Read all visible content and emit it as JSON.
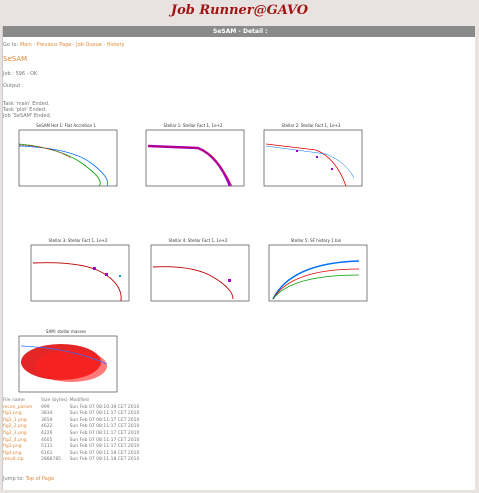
{
  "header": {
    "title": "Job Runner@GAVO",
    "bar_title": "SeSAM - Detail :"
  },
  "nav": {
    "prefix": "Go to:",
    "links": [
      "Main",
      "Previous Page",
      "Job Queue",
      "History"
    ],
    "sep": "·"
  },
  "section_title": "SeSAM",
  "job_line": "Job : 596 - OK",
  "output_label": "Output :",
  "tasks": [
    "Task 'main' Ended.",
    "Task 'plot' Ended.",
    "Job 'SeSAM' Ended."
  ],
  "plots": [
    {
      "name": "plot-1",
      "title": "SeSAM Hot 1: Flat Accretion 1"
    },
    {
      "name": "plot-2",
      "title": "Stellar 1: Stellar Fact 1, 1e+2"
    },
    {
      "name": "plot-3",
      "title": "Stellar 2: Stellar Fact 1, 1e+3"
    },
    {
      "name": "plot-4",
      "title": "Stellar 3: Stellar Fact 1, 1e+2"
    },
    {
      "name": "plot-5",
      "title": "Stellar 4: Stellar Fact 1, 1e+2"
    },
    {
      "name": "plot-6",
      "title": "Stellar 5: SF history 1 bin"
    },
    {
      "name": "plot-7",
      "title": "SAM: stellar masses"
    }
  ],
  "files": {
    "headers": [
      "File name",
      "Size (bytes)",
      "Modified"
    ],
    "rows": [
      [
        "mcon_param",
        "999",
        "Sun Feb 07 08:10:39 CET 2010"
      ],
      [
        "fig1.png",
        "3834",
        "Sun Feb 07 08:11:17 CET 2010"
      ],
      [
        "fig2_1.png",
        "3659",
        "Sun Feb 07 08:11:17 CET 2010"
      ],
      [
        "fig2_2.png",
        "4622",
        "Sun Feb 07 08:11:17 CET 2010"
      ],
      [
        "fig2_3.png",
        "4226",
        "Sun Feb 07 08:11:17 CET 2010"
      ],
      [
        "fig2_4.png",
        "4605",
        "Sun Feb 07 08:11:17 CET 2010"
      ],
      [
        "fig3.png",
        "5111",
        "Sun Feb 07 08:11:17 CET 2010"
      ],
      [
        "fig4.png",
        "6161",
        "Sun Feb 07 08:11:18 CET 2010"
      ],
      [
        "result.zip",
        "2888785",
        "Sun Feb 07 08:11:18 CET 2010"
      ]
    ]
  },
  "jump": {
    "prefix": "Jump to:",
    "link": "Top of Page"
  }
}
